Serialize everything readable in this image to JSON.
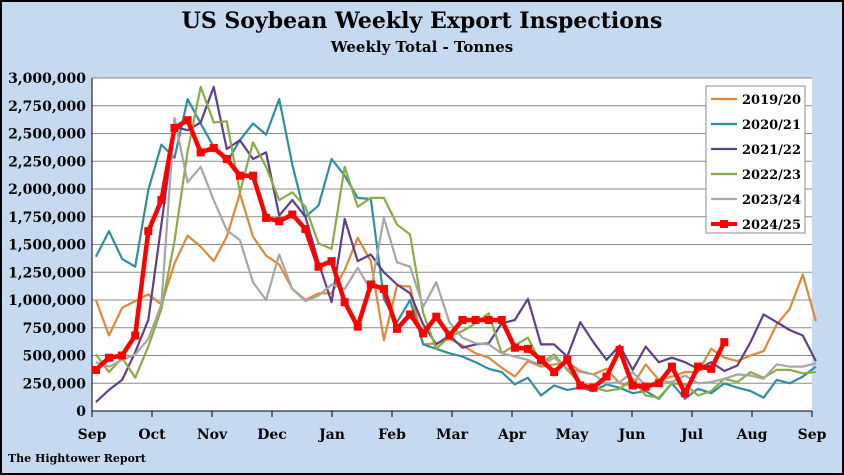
{
  "chart_data": {
    "type": "line",
    "title": "US Soybean Weekly Export Inspections",
    "subtitle": "Weekly Total - Tonnes",
    "footer": "The Hightower Report",
    "xlabel": "",
    "ylabel": "",
    "ylim": [
      0,
      3000000
    ],
    "yticks": [
      0,
      250000,
      500000,
      750000,
      1000000,
      1250000,
      1500000,
      1750000,
      2000000,
      2250000,
      2500000,
      2750000,
      3000000
    ],
    "ytick_labels": [
      "0",
      "250,000",
      "500,000",
      "750,000",
      "1,000,000",
      "1,250,000",
      "1,500,000",
      "1,750,000",
      "2,000,000",
      "2,250,000",
      "2,500,000",
      "2,750,000",
      "3,000,000"
    ],
    "x_axis_months": [
      "Sep",
      "Oct",
      "Nov",
      "Dec",
      "Jan",
      "Feb",
      "Mar",
      "Apr",
      "May",
      "Jun",
      "Jul",
      "Aug",
      "Sep"
    ],
    "grid": true,
    "legend_position": "top-right",
    "series": [
      {
        "name": "2019/20",
        "color": "#e0883a",
        "values": [
          1000000,
          680000,
          930000,
          990000,
          1050000,
          960000,
          1330000,
          1580000,
          1480000,
          1350000,
          1570000,
          1960000,
          1570000,
          1400000,
          1320000,
          1100000,
          1000000,
          1060000,
          1060000,
          1270000,
          1560000,
          1350000,
          640000,
          1130000,
          1120000,
          600000,
          610000,
          650000,
          590000,
          520000,
          480000,
          390000,
          310000,
          450000,
          400000,
          420000,
          440000,
          360000,
          330000,
          380000,
          250000,
          230000,
          420000,
          280000,
          310000,
          350000,
          350000,
          560000,
          480000,
          450000,
          500000,
          540000,
          780000,
          920000,
          1230000,
          810000
        ]
      },
      {
        "name": "2020/21",
        "color": "#2f8f9d",
        "values": [
          1390000,
          1620000,
          1370000,
          1300000,
          1990000,
          2400000,
          2280000,
          2810000,
          2590000,
          2380000,
          2240000,
          2440000,
          2590000,
          2490000,
          2810000,
          2220000,
          1750000,
          1850000,
          2270000,
          2120000,
          1920000,
          1910000,
          1010000,
          800000,
          1000000,
          600000,
          560000,
          520000,
          490000,
          440000,
          380000,
          350000,
          240000,
          300000,
          140000,
          230000,
          190000,
          210000,
          180000,
          240000,
          210000,
          160000,
          180000,
          110000,
          250000,
          110000,
          200000,
          160000,
          250000,
          210000,
          180000,
          120000,
          280000,
          250000,
          310000,
          400000
        ]
      },
      {
        "name": "2021/22",
        "color": "#5f3f86",
        "values": [
          80000,
          190000,
          280000,
          530000,
          820000,
          1680000,
          2560000,
          2530000,
          2600000,
          2920000,
          2360000,
          2440000,
          2270000,
          2330000,
          1760000,
          1900000,
          1750000,
          1340000,
          980000,
          1730000,
          1350000,
          1410000,
          1250000,
          1140000,
          1060000,
          780000,
          600000,
          680000,
          570000,
          600000,
          610000,
          790000,
          820000,
          1010000,
          600000,
          600000,
          490000,
          800000,
          620000,
          460000,
          590000,
          370000,
          580000,
          440000,
          480000,
          440000,
          380000,
          440000,
          360000,
          410000,
          620000,
          870000,
          800000,
          730000,
          680000,
          450000
        ]
      },
      {
        "name": "2022/23",
        "color": "#8aac45",
        "values": [
          510000,
          350000,
          480000,
          300000,
          580000,
          920000,
          1530000,
          2340000,
          2920000,
          2600000,
          2610000,
          1970000,
          2420000,
          2200000,
          1900000,
          1970000,
          1840000,
          1510000,
          1460000,
          2200000,
          1840000,
          1920000,
          1920000,
          1680000,
          1590000,
          880000,
          560000,
          670000,
          720000,
          790000,
          880000,
          520000,
          590000,
          660000,
          430000,
          510000,
          370000,
          250000,
          210000,
          180000,
          200000,
          290000,
          140000,
          120000,
          250000,
          240000,
          140000,
          180000,
          290000,
          260000,
          350000,
          300000,
          370000,
          370000,
          340000,
          350000
        ]
      },
      {
        "name": "2023/24",
        "color": "#a6a6a6",
        "values": [
          440000,
          400000,
          460000,
          510000,
          650000,
          960000,
          2640000,
          2060000,
          2200000,
          1900000,
          1630000,
          1540000,
          1160000,
          1000000,
          1410000,
          1100000,
          990000,
          1040000,
          1140000,
          1100000,
          1290000,
          1090000,
          1740000,
          1340000,
          1300000,
          940000,
          1160000,
          800000,
          660000,
          610000,
          600000,
          520000,
          490000,
          460000,
          410000,
          480000,
          380000,
          350000,
          330000,
          250000,
          260000,
          350000,
          230000,
          270000,
          260000,
          320000,
          250000,
          260000,
          290000,
          330000,
          320000,
          290000,
          420000,
          400000,
          400000,
          430000
        ]
      },
      {
        "name": "2024/25",
        "color": "#ff0000",
        "values": [
          370000,
          480000,
          500000,
          680000,
          1620000,
          1900000,
          2550000,
          2620000,
          2330000,
          2370000,
          2270000,
          2120000,
          2120000,
          1740000,
          1710000,
          1770000,
          1640000,
          1300000,
          1350000,
          980000,
          760000,
          1140000,
          1100000,
          740000,
          870000,
          700000,
          850000,
          680000,
          820000,
          820000,
          820000,
          820000,
          570000,
          560000,
          460000,
          350000,
          460000,
          230000,
          210000,
          310000,
          550000,
          230000,
          220000,
          250000,
          400000,
          160000,
          400000,
          380000,
          620000
        ]
      }
    ]
  }
}
